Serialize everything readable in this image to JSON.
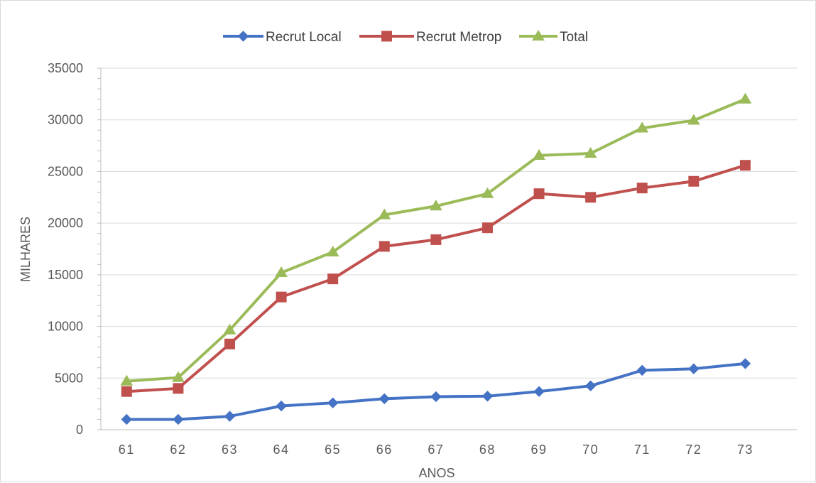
{
  "chart_data": {
    "type": "line",
    "title": "",
    "xlabel": "ANOS",
    "ylabel": "MILHARES",
    "categories": [
      "61",
      "62",
      "63",
      "64",
      "65",
      "66",
      "67",
      "68",
      "69",
      "70",
      "71",
      "72",
      "73"
    ],
    "y_ticks": [
      "0",
      "5000",
      "10000",
      "15000",
      "20000",
      "25000",
      "30000",
      "35000"
    ],
    "ylim": [
      0,
      35000
    ],
    "grid": true,
    "legend_position": "top",
    "series": [
      {
        "name": "Recrut Local",
        "color": "#4472c4",
        "marker": "diamond",
        "values": [
          1000,
          1000,
          1300,
          2300,
          2600,
          3000,
          3200,
          3250,
          3700,
          4250,
          5750,
          5900,
          6400
        ]
      },
      {
        "name": "Recrut Metrop",
        "color": "#c0504d",
        "marker": "square",
        "values": [
          3700,
          4000,
          8300,
          12850,
          14600,
          17750,
          18400,
          19550,
          22850,
          22500,
          23400,
          24050,
          25600
        ]
      },
      {
        "name": "Total",
        "color": "#9bbb59",
        "marker": "triangle",
        "values": [
          4700,
          5050,
          9650,
          15200,
          17200,
          20800,
          21650,
          22850,
          26550,
          26750,
          29200,
          29950,
          32000
        ]
      }
    ]
  }
}
